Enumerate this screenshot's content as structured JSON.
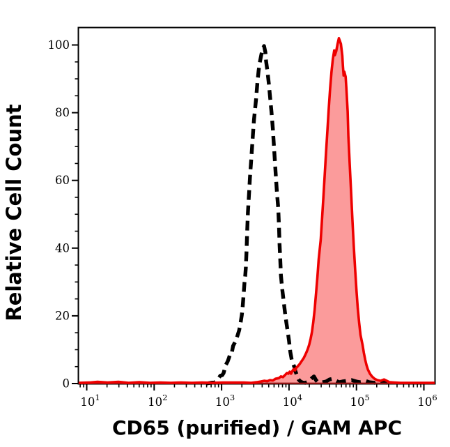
{
  "figure": {
    "background": "#ffffff",
    "plot_border_color": "#000000"
  },
  "chart_data": {
    "type": "area",
    "subtype": "flow-cytometry-histogram-overlay",
    "title": "",
    "xlabel": "CD65 (purified) / GAM APC",
    "ylabel": "Relative Cell Count",
    "x_scale": "log10",
    "x_tick_base": "10",
    "x_tick_exponents": [
      1,
      2,
      3,
      4,
      5,
      6
    ],
    "x_range_log": [
      0.87,
      6.16
    ],
    "y_ticks": [
      0,
      20,
      40,
      60,
      80,
      100
    ],
    "y_tick_labels": [
      "0",
      "20",
      "40",
      "60",
      "80",
      "100"
    ],
    "y_minor_step": 5,
    "y_range": [
      0,
      105
    ],
    "grid": "off",
    "legend": "none",
    "baseline_color": "#8e1212",
    "series": [
      {
        "name": "black dashed histogram (unstained control)",
        "style": "dashed",
        "color": "#000000",
        "fill": "none",
        "peak_x_log": 3.63,
        "peak_count": 99.7,
        "points": [
          [
            2.77,
            0
          ],
          [
            2.9,
            0.4
          ],
          [
            2.95,
            1.4
          ],
          [
            2.98,
            2.3
          ],
          [
            3.01,
            2.5
          ],
          [
            3.03,
            3.1
          ],
          [
            3.06,
            5.4
          ],
          [
            3.09,
            6.5
          ],
          [
            3.11,
            7.6
          ],
          [
            3.13,
            8.9
          ],
          [
            3.15,
            8.9
          ],
          [
            3.17,
            11.1
          ],
          [
            3.21,
            12.6
          ],
          [
            3.23,
            13.8
          ],
          [
            3.26,
            15.7
          ],
          [
            3.28,
            17.7
          ],
          [
            3.3,
            20.2
          ],
          [
            3.31,
            22.0
          ],
          [
            3.33,
            27.0
          ],
          [
            3.34,
            29.9
          ],
          [
            3.35,
            31.7
          ],
          [
            3.36,
            34.2
          ],
          [
            3.37,
            39.1
          ],
          [
            3.38,
            45.3
          ],
          [
            3.39,
            50.5
          ],
          [
            3.4,
            53.6
          ],
          [
            3.41,
            57.1
          ],
          [
            3.42,
            60.8
          ],
          [
            3.44,
            66.3
          ],
          [
            3.46,
            72.1
          ],
          [
            3.48,
            77.9
          ],
          [
            3.51,
            83.8
          ],
          [
            3.53,
            88.6
          ],
          [
            3.55,
            92.5
          ],
          [
            3.57,
            95.2
          ],
          [
            3.59,
            97.2
          ],
          [
            3.61,
            98.9
          ],
          [
            3.63,
            99.7
          ],
          [
            3.65,
            97.8
          ],
          [
            3.66,
            95.2
          ],
          [
            3.68,
            92.3
          ],
          [
            3.7,
            88.6
          ],
          [
            3.72,
            84.4
          ],
          [
            3.74,
            80.3
          ],
          [
            3.76,
            75.2
          ],
          [
            3.78,
            69.0
          ],
          [
            3.8,
            62.8
          ],
          [
            3.82,
            56.6
          ],
          [
            3.84,
            51.9
          ],
          [
            3.85,
            47.0
          ],
          [
            3.86,
            41.2
          ],
          [
            3.87,
            36.7
          ],
          [
            3.88,
            31.9
          ],
          [
            3.9,
            27.8
          ],
          [
            3.92,
            24.3
          ],
          [
            3.94,
            21.0
          ],
          [
            3.96,
            18.1
          ],
          [
            3.98,
            15.4
          ],
          [
            4.0,
            12.6
          ],
          [
            4.02,
            9.3
          ],
          [
            4.04,
            7.0
          ],
          [
            4.06,
            5.8
          ],
          [
            4.08,
            4.9
          ],
          [
            4.09,
            3.9
          ],
          [
            4.12,
            2.3
          ],
          [
            4.14,
            1.2
          ],
          [
            4.17,
            0.6
          ],
          [
            4.2,
            0.3
          ],
          [
            4.24,
            0.2
          ],
          [
            4.29,
            0.6
          ],
          [
            4.34,
            1.6
          ],
          [
            4.37,
            2.1
          ],
          [
            4.4,
            1.0
          ],
          [
            4.43,
            0.4
          ],
          [
            4.48,
            0.3
          ],
          [
            4.55,
            0.6
          ],
          [
            4.6,
            1.2
          ],
          [
            4.65,
            1.4
          ],
          [
            4.7,
            0.8
          ],
          [
            4.74,
            0.4
          ],
          [
            4.79,
            0.6
          ],
          [
            4.86,
            0.8
          ],
          [
            4.93,
            1.0
          ],
          [
            5.0,
            0.6
          ],
          [
            5.06,
            0.4
          ],
          [
            5.13,
            0.8
          ],
          [
            5.19,
            0.4
          ],
          [
            5.27,
            0.2
          ],
          [
            5.34,
            0.8
          ],
          [
            5.4,
            0.4
          ],
          [
            5.45,
            0.2
          ]
        ]
      },
      {
        "name": "red filled histogram (CD65 stained)",
        "style": "solid",
        "color": "#ee0000",
        "fill": "#fb9b9b",
        "peak_x_log": 4.74,
        "peak_count": 102,
        "points": [
          [
            0.88,
            0.2
          ],
          [
            1.05,
            0.3
          ],
          [
            1.16,
            0.5
          ],
          [
            1.31,
            0.3
          ],
          [
            1.47,
            0.5
          ],
          [
            1.62,
            0.2
          ],
          [
            1.78,
            0.4
          ],
          [
            1.94,
            0.2
          ],
          [
            2.09,
            0.3
          ],
          [
            2.25,
            0.2
          ],
          [
            2.4,
            0.3
          ],
          [
            2.56,
            0.2
          ],
          [
            2.71,
            0.3
          ],
          [
            2.87,
            0.2
          ],
          [
            3.02,
            0.3
          ],
          [
            3.18,
            0.3
          ],
          [
            3.33,
            0.3
          ],
          [
            3.44,
            0.2
          ],
          [
            3.52,
            0.4
          ],
          [
            3.58,
            0.6
          ],
          [
            3.63,
            0.8
          ],
          [
            3.68,
            0.7
          ],
          [
            3.72,
            1.0
          ],
          [
            3.76,
            0.9
          ],
          [
            3.8,
            1.4
          ],
          [
            3.85,
            1.6
          ],
          [
            3.88,
            2.1
          ],
          [
            3.91,
            1.9
          ],
          [
            3.94,
            2.5
          ],
          [
            3.97,
            3.1
          ],
          [
            3.99,
            2.9
          ],
          [
            4.01,
            3.5
          ],
          [
            4.03,
            2.9
          ],
          [
            4.05,
            3.7
          ],
          [
            4.07,
            4.3
          ],
          [
            4.09,
            3.9
          ],
          [
            4.11,
            4.7
          ],
          [
            4.13,
            5.1
          ],
          [
            4.16,
            5.8
          ],
          [
            4.18,
            6.4
          ],
          [
            4.2,
            7.0
          ],
          [
            4.22,
            7.6
          ],
          [
            4.24,
            8.4
          ],
          [
            4.26,
            9.3
          ],
          [
            4.28,
            10.3
          ],
          [
            4.3,
            11.5
          ],
          [
            4.32,
            13.2
          ],
          [
            4.34,
            15.2
          ],
          [
            4.36,
            18.1
          ],
          [
            4.38,
            21.8
          ],
          [
            4.4,
            26.4
          ],
          [
            4.42,
            31.3
          ],
          [
            4.44,
            36.7
          ],
          [
            4.47,
            42.4
          ],
          [
            4.49,
            48.6
          ],
          [
            4.51,
            55.2
          ],
          [
            4.53,
            61.8
          ],
          [
            4.55,
            68.4
          ],
          [
            4.57,
            75.0
          ],
          [
            4.59,
            81.4
          ],
          [
            4.61,
            87.1
          ],
          [
            4.63,
            92.1
          ],
          [
            4.65,
            95.8
          ],
          [
            4.67,
            98.4
          ],
          [
            4.68,
            97.0
          ],
          [
            4.7,
            98.2
          ],
          [
            4.72,
            100.3
          ],
          [
            4.74,
            102.0
          ],
          [
            4.77,
            100.3
          ],
          [
            4.79,
            96.8
          ],
          [
            4.8,
            93.7
          ],
          [
            4.81,
            91.0
          ],
          [
            4.82,
            92.1
          ],
          [
            4.84,
            90.6
          ],
          [
            4.85,
            87.3
          ],
          [
            4.87,
            80.3
          ],
          [
            4.88,
            73.1
          ],
          [
            4.9,
            64.9
          ],
          [
            4.92,
            56.6
          ],
          [
            4.94,
            48.4
          ],
          [
            4.96,
            40.8
          ],
          [
            4.98,
            33.8
          ],
          [
            5.0,
            27.6
          ],
          [
            5.02,
            22.2
          ],
          [
            5.04,
            17.9
          ],
          [
            5.06,
            14.4
          ],
          [
            5.09,
            11.5
          ],
          [
            5.11,
            9.1
          ],
          [
            5.13,
            7.0
          ],
          [
            5.15,
            5.4
          ],
          [
            5.17,
            4.1
          ],
          [
            5.2,
            2.9
          ],
          [
            5.23,
            2.1
          ],
          [
            5.27,
            1.4
          ],
          [
            5.31,
            1.0
          ],
          [
            5.36,
            0.8
          ],
          [
            5.41,
            1.2
          ],
          [
            5.45,
            0.8
          ],
          [
            5.49,
            0.4
          ],
          [
            5.56,
            0.3
          ],
          [
            5.65,
            0.2
          ],
          [
            5.85,
            0.2
          ],
          [
            6.05,
            0.2
          ],
          [
            6.16,
            0.2
          ]
        ]
      }
    ]
  }
}
